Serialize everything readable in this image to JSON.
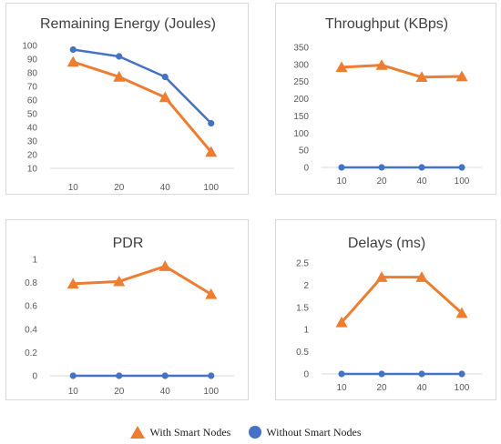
{
  "colors": {
    "with": "#ED7D31",
    "without": "#4472C4",
    "grid": "#d9d9d9",
    "text": "#595959"
  },
  "legend": {
    "with_label": "With Smart Nodes",
    "without_label": "Without Smart Nodes",
    "with_icon": "triangle-icon",
    "without_icon": "circle-icon"
  },
  "chart_data": [
    {
      "type": "line",
      "title": "Remaining Energy (Joules)",
      "categories": [
        "10",
        "20",
        "40",
        "100"
      ],
      "ylim": [
        10,
        100
      ],
      "yticks": [
        10,
        20,
        30,
        40,
        50,
        60,
        70,
        80,
        90,
        100
      ],
      "grid": false,
      "series": [
        {
          "name": "Without Smart Nodes",
          "values": [
            97,
            92,
            77,
            43
          ]
        },
        {
          "name": "With Smart Nodes",
          "values": [
            88,
            77,
            62,
            22
          ]
        }
      ]
    },
    {
      "type": "line",
      "title": "Throughput (KBps)",
      "categories": [
        "10",
        "20",
        "40",
        "100"
      ],
      "ylim": [
        0,
        350
      ],
      "yticks": [
        0,
        50,
        100,
        150,
        200,
        250,
        300,
        350
      ],
      "grid": false,
      "series": [
        {
          "name": "Without Smart Nodes",
          "values": [
            0,
            0,
            0,
            0
          ]
        },
        {
          "name": "With Smart Nodes",
          "values": [
            292,
            298,
            263,
            265
          ]
        }
      ]
    },
    {
      "type": "line",
      "title": "PDR",
      "categories": [
        "10",
        "20",
        "40",
        "100"
      ],
      "ylim": [
        0,
        1
      ],
      "yticks": [
        "0",
        "0.2",
        "0.4",
        "0.6",
        "0.8",
        "1"
      ],
      "grid": false,
      "series": [
        {
          "name": "Without Smart Nodes",
          "values": [
            0,
            0,
            0,
            0
          ]
        },
        {
          "name": "With Smart Nodes",
          "values": [
            0.79,
            0.81,
            0.94,
            0.7
          ]
        }
      ]
    },
    {
      "type": "line",
      "title": "Delays (ms)",
      "categories": [
        "10",
        "20",
        "40",
        "100"
      ],
      "ylim": [
        0,
        2.5
      ],
      "yticks": [
        "0",
        "0.5",
        "1",
        "1.5",
        "2",
        "2.5"
      ],
      "grid": false,
      "series": [
        {
          "name": "Without Smart Nodes",
          "values": [
            0,
            0,
            0,
            0
          ]
        },
        {
          "name": "With Smart Nodes",
          "values": [
            1.16,
            2.18,
            2.18,
            1.37
          ]
        }
      ]
    }
  ]
}
